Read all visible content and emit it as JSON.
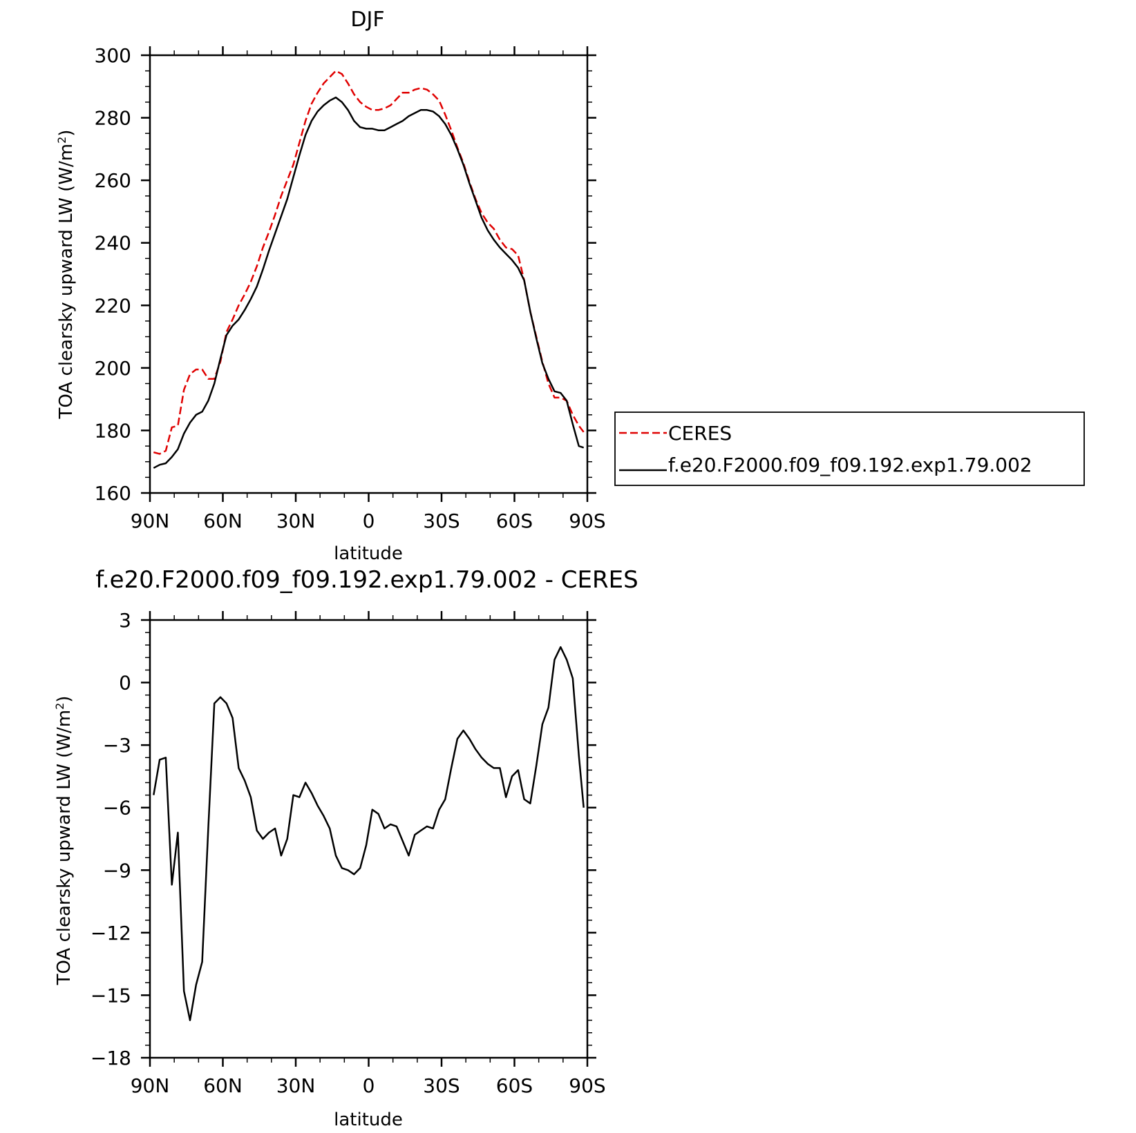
{
  "colors": {
    "model": "#000000",
    "ceres": "#e00000",
    "axis": "#000000",
    "background": "#ffffff"
  },
  "chart_data": [
    {
      "type": "line",
      "title": "DJF",
      "xlabel": "latitude",
      "ylabel_main": "TOA clearsky upward LW (W/m",
      "ylabel_sup": "2",
      "ylabel_close": ")",
      "xlim": [
        90,
        -90
      ],
      "ylim": [
        160,
        300
      ],
      "xticks": [
        {
          "value": 90,
          "label": "90N"
        },
        {
          "value": 60,
          "label": "60N"
        },
        {
          "value": 30,
          "label": "30N"
        },
        {
          "value": 0,
          "label": "0"
        },
        {
          "value": -30,
          "label": "30S"
        },
        {
          "value": -60,
          "label": "60S"
        },
        {
          "value": -90,
          "label": "90S"
        }
      ],
      "yticks": [
        {
          "value": 300,
          "label": "300"
        },
        {
          "value": 280,
          "label": "280"
        },
        {
          "value": 260,
          "label": "260"
        },
        {
          "value": 240,
          "label": "240"
        },
        {
          "value": 220,
          "label": "220"
        },
        {
          "value": 200,
          "label": "200"
        },
        {
          "value": 180,
          "label": "180"
        },
        {
          "value": 160,
          "label": "160"
        }
      ],
      "legend_position": "right",
      "series": [
        {
          "name": "CERES",
          "style": "dashed",
          "color": "#e00000",
          "x": [
            88.5,
            86,
            83.5,
            81,
            78.5,
            76,
            73.5,
            71,
            68.5,
            66,
            63.5,
            61,
            58.5,
            56,
            53.5,
            51,
            48.5,
            46,
            43.5,
            41,
            38.5,
            36,
            33.5,
            31,
            28.5,
            26,
            23.5,
            21,
            18.5,
            16,
            13.5,
            11,
            8.5,
            6,
            3.5,
            1,
            -1.5,
            -4,
            -6.5,
            -9,
            -11.5,
            -14,
            -16.5,
            -19,
            -21.5,
            -24,
            -26.5,
            -29,
            -31.5,
            -34,
            -36.5,
            -39,
            -41.5,
            -44,
            -46.5,
            -49,
            -51.5,
            -54,
            -56.5,
            -59,
            -61.5,
            -64,
            -66.5,
            -69,
            -71.5,
            -74,
            -76.5,
            -79,
            -81.5,
            -84,
            -86.5,
            -88.5
          ],
          "y": [
            173,
            172.5,
            173.5,
            181,
            181.5,
            193,
            198,
            199.5,
            199.5,
            196.5,
            196.5,
            202,
            211.5,
            215.5,
            220,
            223.5,
            227.5,
            232.5,
            238.5,
            243.5,
            249,
            255,
            260,
            265,
            272,
            279,
            284.5,
            288,
            291,
            293,
            295,
            294,
            291,
            287.5,
            285,
            283.5,
            282.5,
            282.5,
            283,
            284,
            286,
            288,
            288,
            289,
            289.5,
            289,
            287.5,
            285.5,
            281,
            276,
            270.5,
            265.5,
            259.5,
            254,
            249.5,
            246.5,
            244.5,
            241,
            238.5,
            238,
            236,
            228,
            218,
            210,
            202,
            195,
            190.5,
            190.5,
            189.5,
            185,
            181.5,
            179.5
          ]
        },
        {
          "name": "f.e20.F2000.f09_f09.192.exp1.79.002",
          "style": "solid",
          "color": "#000000",
          "x": [
            88.5,
            86,
            83.5,
            81,
            78.5,
            76,
            73.5,
            71,
            68.5,
            66,
            63.5,
            61,
            58.5,
            56,
            53.5,
            51,
            48.5,
            46,
            43.5,
            41,
            38.5,
            36,
            33.5,
            31,
            28.5,
            26,
            23.5,
            21,
            18.5,
            16,
            13.5,
            11,
            8.5,
            6,
            3.5,
            1,
            -1.5,
            -4,
            -6.5,
            -9,
            -11.5,
            -14,
            -16.5,
            -19,
            -21.5,
            -24,
            -26.5,
            -29,
            -31.5,
            -34,
            -36.5,
            -39,
            -41.5,
            -44,
            -46.5,
            -49,
            -51.5,
            -54,
            -56.5,
            -59,
            -61.5,
            -64,
            -66.5,
            -69,
            -71.5,
            -74,
            -76.5,
            -79,
            -81.5,
            -84,
            -86.5,
            -88.5
          ],
          "y": [
            168,
            169,
            169.5,
            171.5,
            174,
            179,
            182.5,
            185,
            186,
            189.5,
            195,
            203,
            210.5,
            213.5,
            215.5,
            218.5,
            222,
            226,
            231.5,
            237.5,
            243,
            248.5,
            254,
            261,
            268,
            274.5,
            279,
            282,
            284,
            285.5,
            286.5,
            285,
            282.5,
            279,
            277,
            276.5,
            276.5,
            276,
            276,
            277,
            278,
            279,
            280.5,
            281.5,
            282.5,
            282.5,
            282,
            280.5,
            278,
            274.5,
            270,
            265,
            259,
            253.5,
            248,
            244,
            241,
            238.5,
            236.5,
            234.5,
            232,
            228,
            218,
            209.5,
            201.5,
            196.5,
            192.5,
            192,
            189.5,
            182,
            175,
            174.5
          ]
        }
      ]
    },
    {
      "type": "line",
      "title": "f.e20.F2000.f09_f09.192.exp1.79.002 - CERES",
      "xlabel": "latitude",
      "ylabel_main": "TOA clearsky upward LW (W/m",
      "ylabel_sup": "2",
      "ylabel_close": ")",
      "xlim": [
        90,
        -90
      ],
      "ylim": [
        -18,
        3
      ],
      "xticks": [
        {
          "value": 90,
          "label": "90N"
        },
        {
          "value": 60,
          "label": "60N"
        },
        {
          "value": 30,
          "label": "30N"
        },
        {
          "value": 0,
          "label": "0"
        },
        {
          "value": -30,
          "label": "30S"
        },
        {
          "value": -60,
          "label": "60S"
        },
        {
          "value": -90,
          "label": "90S"
        }
      ],
      "yticks": [
        {
          "value": 3,
          "label": "3"
        },
        {
          "value": 0,
          "label": "0"
        },
        {
          "value": -3,
          "label": "−3"
        },
        {
          "value": -6,
          "label": "−6"
        },
        {
          "value": -9,
          "label": "−9"
        },
        {
          "value": -12,
          "label": "−12"
        },
        {
          "value": -15,
          "label": "−15"
        },
        {
          "value": -18,
          "label": "−18"
        }
      ],
      "series": [
        {
          "style": "solid",
          "color": "#000000",
          "x": [
            88.5,
            86,
            83.5,
            81,
            78.5,
            76,
            73.5,
            71,
            68.5,
            66,
            63.5,
            61,
            58.5,
            56,
            53.5,
            51,
            48.5,
            46,
            43.5,
            41,
            38.5,
            36,
            33.5,
            31,
            28.5,
            26,
            23.5,
            21,
            18.5,
            16,
            13.5,
            11,
            8.5,
            6,
            3.5,
            1,
            -1.5,
            -4,
            -6.5,
            -9,
            -11.5,
            -14,
            -16.5,
            -19,
            -21.5,
            -24,
            -26.5,
            -29,
            -31.5,
            -34,
            -36.5,
            -39,
            -41.5,
            -44,
            -46.5,
            -49,
            -51.5,
            -54,
            -56.5,
            -59,
            -61.5,
            -64,
            -66.5,
            -69,
            -71.5,
            -74,
            -76.5,
            -79,
            -81.5,
            -84,
            -86.5,
            -88.5
          ],
          "y": [
            -5.4,
            -3.7,
            -3.6,
            -9.7,
            -7.2,
            -14.8,
            -16.2,
            -14.5,
            -13.4,
            -7,
            -1,
            -0.7,
            -1,
            -1.7,
            -4.1,
            -4.7,
            -5.5,
            -7.1,
            -7.5,
            -7.2,
            -7,
            -8.3,
            -7.5,
            -5.4,
            -5.5,
            -4.8,
            -5.3,
            -5.9,
            -6.4,
            -7,
            -8.3,
            -8.9,
            -9,
            -9.2,
            -8.9,
            -7.8,
            -6.1,
            -6.3,
            -7,
            -6.8,
            -6.9,
            -7.6,
            -8.3,
            -7.3,
            -7.1,
            -6.9,
            -7,
            -6.1,
            -5.6,
            -4.1,
            -2.7,
            -2.3,
            -2.7,
            -3.2,
            -3.6,
            -3.9,
            -4.1,
            -4.1,
            -5.5,
            -4.5,
            -4.2,
            -5.6,
            -5.8,
            -4,
            -2,
            -1.2,
            1.1,
            1.7,
            1.1,
            0.2,
            -3.5,
            -6
          ]
        }
      ]
    }
  ]
}
